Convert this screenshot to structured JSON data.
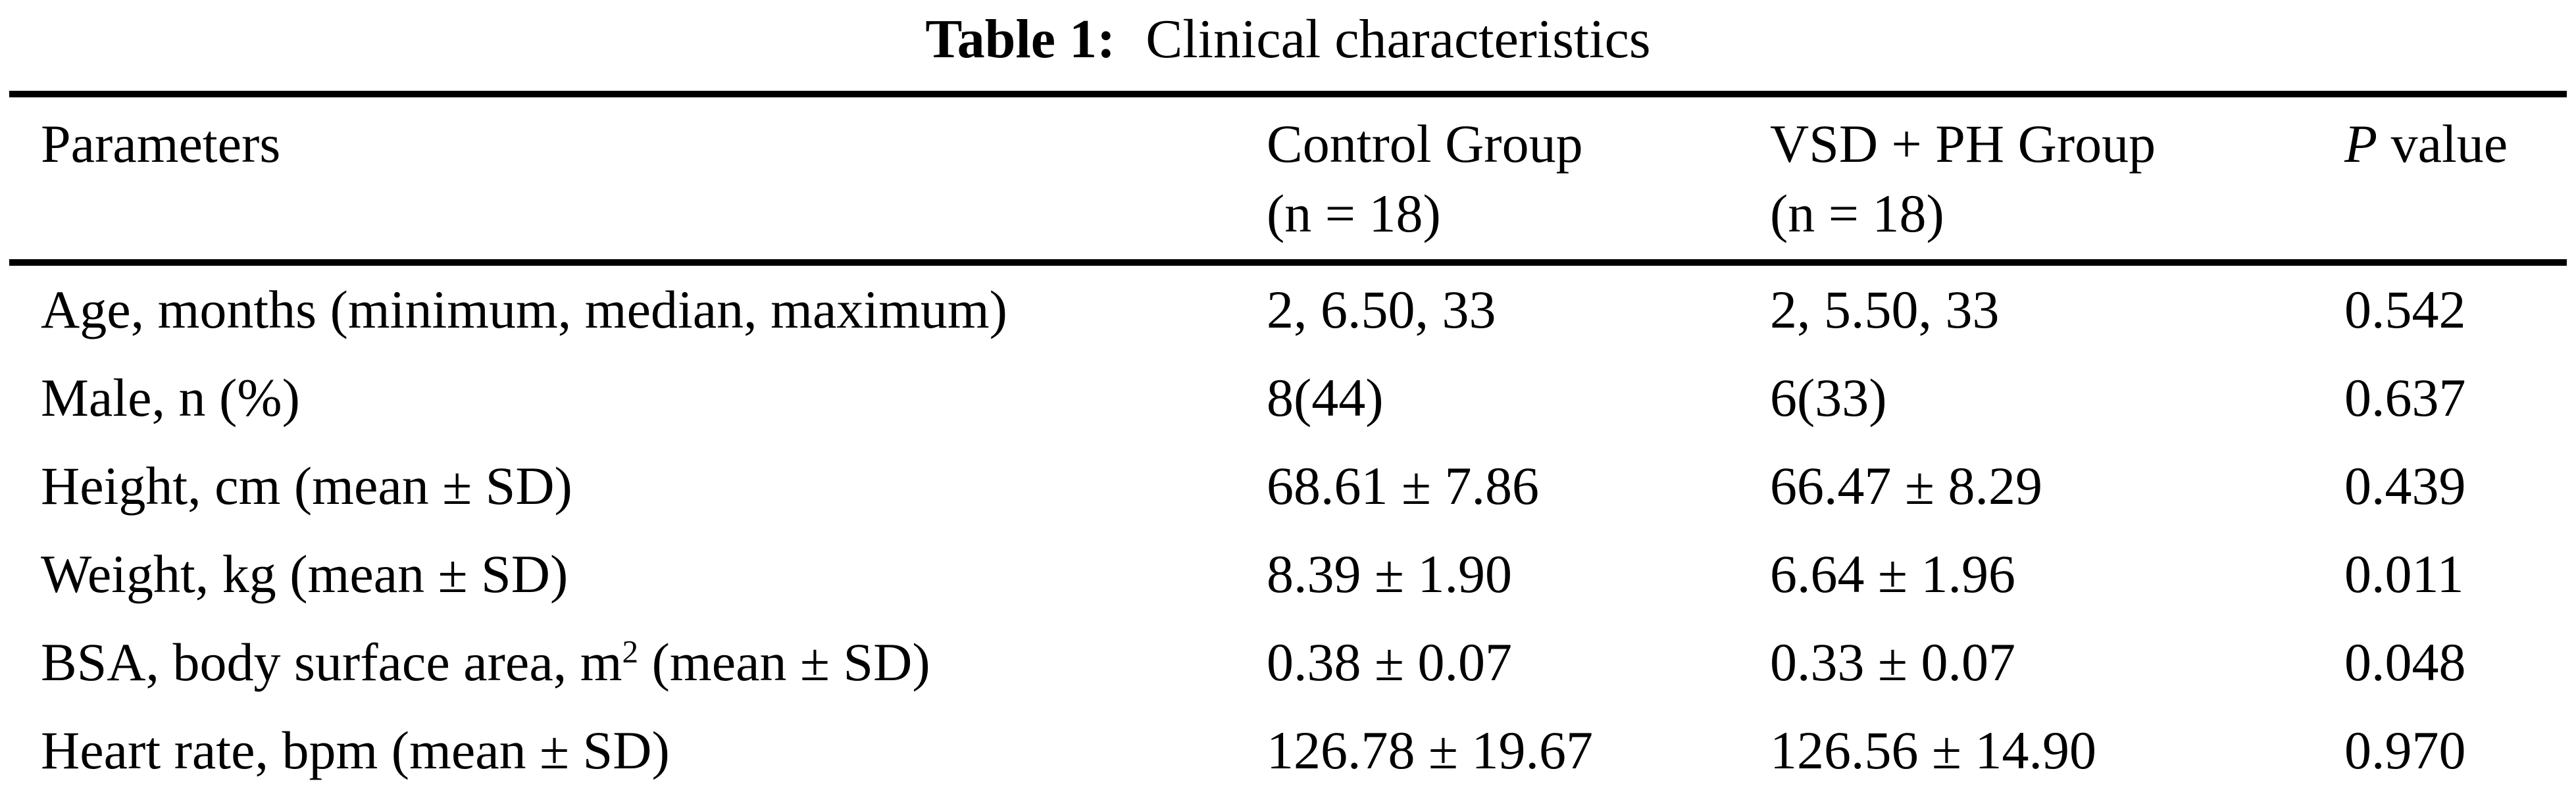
{
  "title": {
    "label": "Table 1:",
    "caption": "Clinical characteristics"
  },
  "colors": {
    "background": "#ffffff",
    "text": "#000000",
    "rule": "#000000"
  },
  "table": {
    "header": {
      "parameters": "Parameters",
      "control_line1": "Control Group",
      "control_line2": "(n = 18)",
      "vsd_line1": "VSD + PH Group",
      "vsd_line2": "(n = 18)",
      "p_italic": "P",
      "p_rest": " value"
    },
    "rows": [
      {
        "parameter": "Age, months (minimum, median, maximum)",
        "control": "2, 6.50, 33",
        "vsd_ph": "2, 5.50, 33",
        "p_value": "0.542"
      },
      {
        "parameter": "Male, n (%)",
        "control": "8(44)",
        "vsd_ph": "6(33)",
        "p_value": "0.637"
      },
      {
        "parameter": "Height, cm (mean ± SD)",
        "control": "68.61 ± 7.86",
        "vsd_ph": "66.47 ± 8.29",
        "p_value": "0.439"
      },
      {
        "parameter": "Weight, kg (mean ± SD)",
        "control": "8.39 ± 1.90",
        "vsd_ph": "6.64 ± 1.96",
        "p_value": "0.011"
      },
      {
        "parameter": "BSA, body surface area, m",
        "parameter_sup": "2",
        "parameter_post": " (mean ± SD)",
        "control": "0.38 ± 0.07",
        "vsd_ph": "0.33 ± 0.07",
        "p_value": "0.048"
      },
      {
        "parameter": "Heart rate, bpm (mean ± SD)",
        "control": "126.78 ± 19.67",
        "vsd_ph": "126.56 ± 14.90",
        "p_value": "0.970"
      }
    ]
  }
}
